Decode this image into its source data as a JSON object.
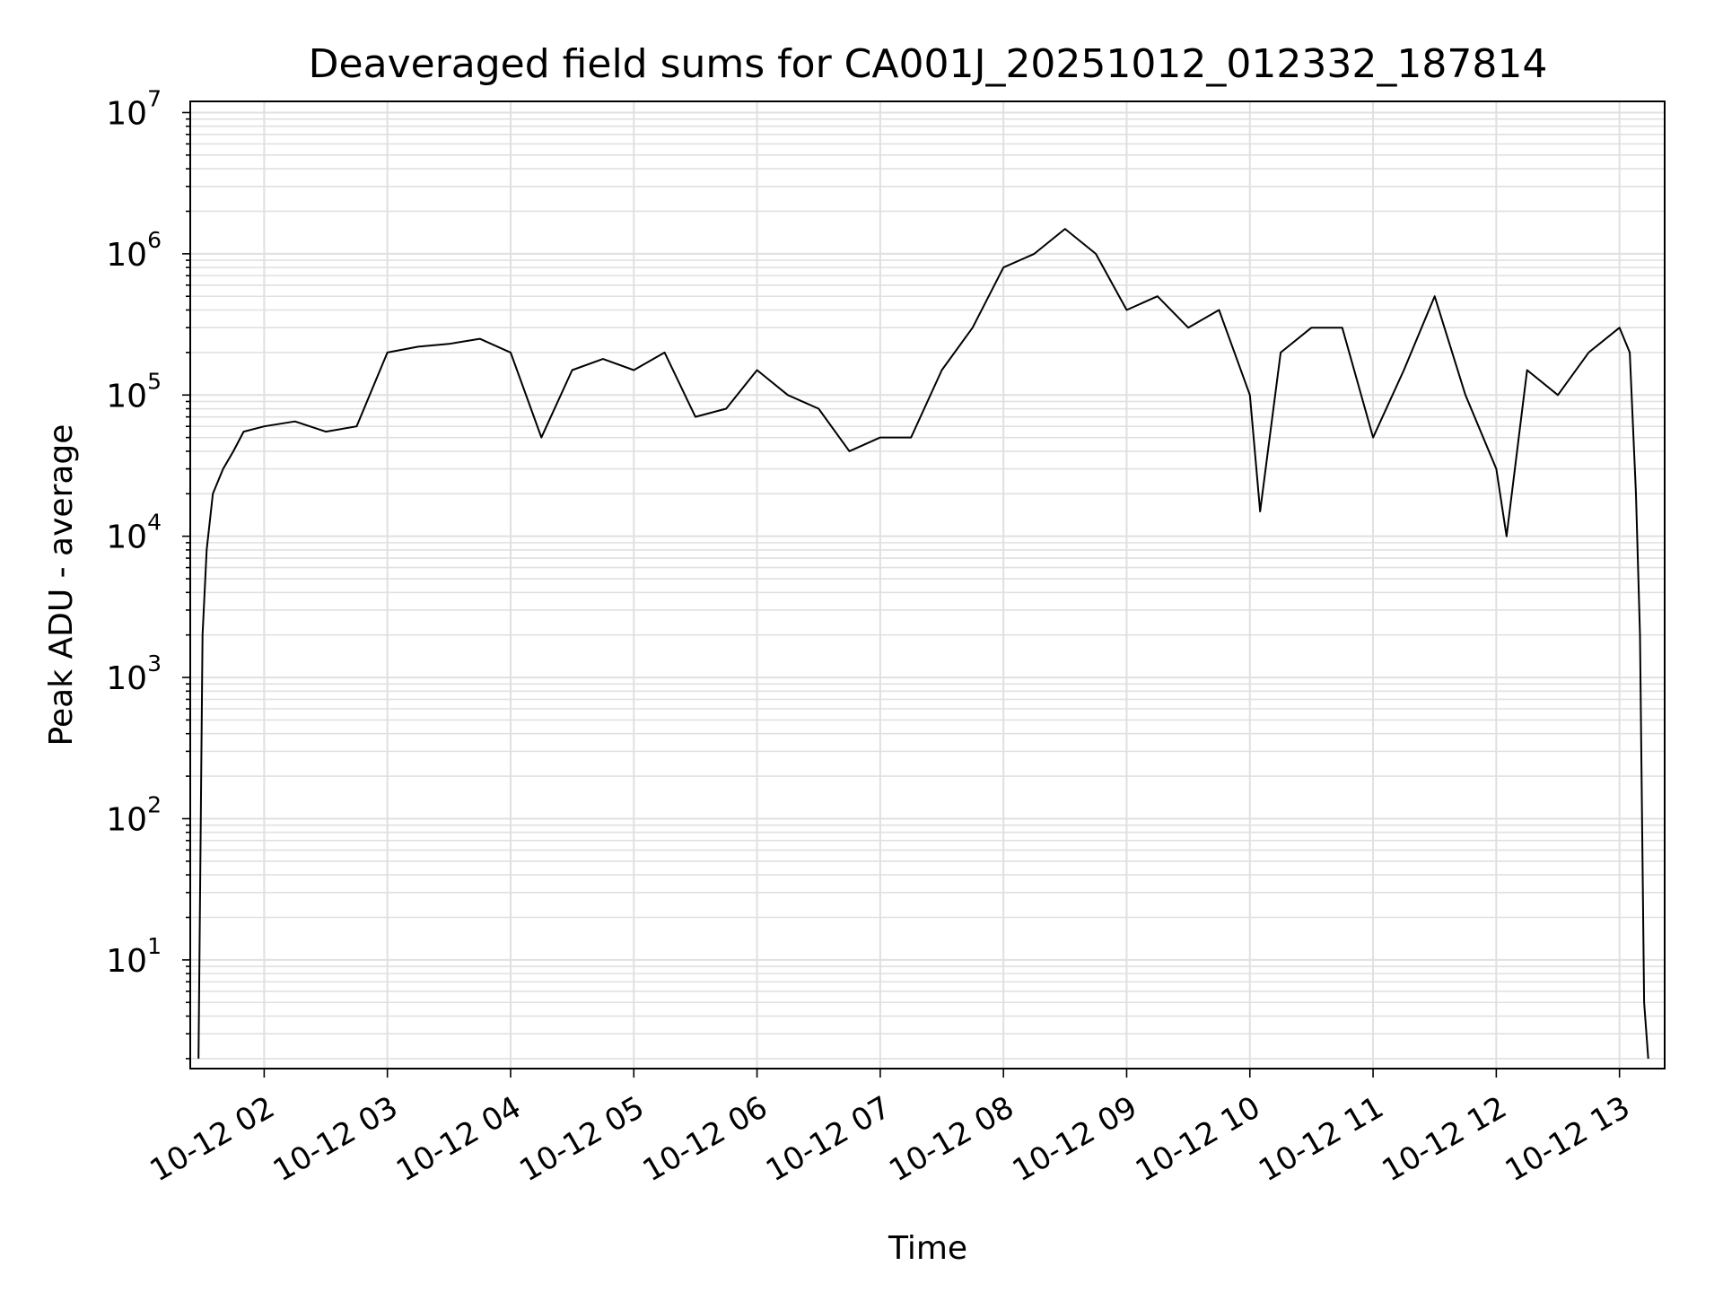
{
  "chart_data": {
    "type": "line",
    "title": "Deaveraged field sums for CA001J_20251012_012332_187814",
    "xlabel": "Time",
    "ylabel": "Peak ADU - average",
    "y_scale": "log",
    "ylim": [
      1.7,
      12000000
    ],
    "xlim": [
      "2025-10-12 01:24",
      "2025-10-12 13:22"
    ],
    "grid": true,
    "grid_color": "#e0e0e0",
    "line_color": "#000000",
    "y_ticks": [
      {
        "base": "10",
        "exp": "1",
        "value": 10
      },
      {
        "base": "10",
        "exp": "2",
        "value": 100
      },
      {
        "base": "10",
        "exp": "3",
        "value": 1000
      },
      {
        "base": "10",
        "exp": "4",
        "value": 10000
      },
      {
        "base": "10",
        "exp": "5",
        "value": 100000
      },
      {
        "base": "10",
        "exp": "6",
        "value": 1000000
      },
      {
        "base": "10",
        "exp": "7",
        "value": 10000000
      }
    ],
    "x_ticks": [
      {
        "label": "10-12 02",
        "time": "2025-10-12 02:00"
      },
      {
        "label": "10-12 03",
        "time": "2025-10-12 03:00"
      },
      {
        "label": "10-12 04",
        "time": "2025-10-12 04:00"
      },
      {
        "label": "10-12 05",
        "time": "2025-10-12 05:00"
      },
      {
        "label": "10-12 06",
        "time": "2025-10-12 06:00"
      },
      {
        "label": "10-12 07",
        "time": "2025-10-12 07:00"
      },
      {
        "label": "10-12 08",
        "time": "2025-10-12 08:00"
      },
      {
        "label": "10-12 09",
        "time": "2025-10-12 09:00"
      },
      {
        "label": "10-12 10",
        "time": "2025-10-12 10:00"
      },
      {
        "label": "10-12 11",
        "time": "2025-10-12 11:00"
      },
      {
        "label": "10-12 12",
        "time": "2025-10-12 12:00"
      },
      {
        "label": "10-12 13",
        "time": "2025-10-12 13:00"
      }
    ],
    "series": [
      {
        "x": [
          "2025-10-12 01:28",
          "2025-10-12 01:30",
          "2025-10-12 01:32",
          "2025-10-12 01:35",
          "2025-10-12 01:40",
          "2025-10-12 01:45",
          "2025-10-12 01:50",
          "2025-10-12 02:00",
          "2025-10-12 02:15",
          "2025-10-12 02:30",
          "2025-10-12 02:45",
          "2025-10-12 03:00",
          "2025-10-12 03:15",
          "2025-10-12 03:30",
          "2025-10-12 03:45",
          "2025-10-12 04:00",
          "2025-10-12 04:15",
          "2025-10-12 04:30",
          "2025-10-12 04:45",
          "2025-10-12 05:00",
          "2025-10-12 05:15",
          "2025-10-12 05:30",
          "2025-10-12 05:45",
          "2025-10-12 06:00",
          "2025-10-12 06:15",
          "2025-10-12 06:30",
          "2025-10-12 06:45",
          "2025-10-12 07:00",
          "2025-10-12 07:15",
          "2025-10-12 07:30",
          "2025-10-12 07:45",
          "2025-10-12 08:00",
          "2025-10-12 08:15",
          "2025-10-12 08:30",
          "2025-10-12 08:45",
          "2025-10-12 09:00",
          "2025-10-12 09:15",
          "2025-10-12 09:30",
          "2025-10-12 09:45",
          "2025-10-12 10:00",
          "2025-10-12 10:05",
          "2025-10-12 10:15",
          "2025-10-12 10:30",
          "2025-10-12 10:45",
          "2025-10-12 11:00",
          "2025-10-12 11:15",
          "2025-10-12 11:30",
          "2025-10-12 11:45",
          "2025-10-12 12:00",
          "2025-10-12 12:05",
          "2025-10-12 12:15",
          "2025-10-12 12:30",
          "2025-10-12 12:45",
          "2025-10-12 13:00",
          "2025-10-12 13:05",
          "2025-10-12 13:08",
          "2025-10-12 13:10",
          "2025-10-12 13:12",
          "2025-10-12 13:14"
        ],
        "y": [
          2,
          2000,
          8000,
          20000,
          30000,
          40000,
          55000,
          60000,
          65000,
          55000,
          60000,
          200000,
          220000,
          230000,
          250000,
          200000,
          50000,
          150000,
          180000,
          150000,
          200000,
          70000,
          80000,
          150000,
          100000,
          80000,
          40000,
          50000,
          50000,
          150000,
          300000,
          800000,
          1000000,
          1500000,
          1000000,
          400000,
          500000,
          300000,
          400000,
          100000,
          15000,
          200000,
          300000,
          300000,
          50000,
          150000,
          500000,
          100000,
          30000,
          10000,
          150000,
          100000,
          200000,
          300000,
          200000,
          20000,
          2000,
          5,
          2
        ]
      }
    ]
  }
}
